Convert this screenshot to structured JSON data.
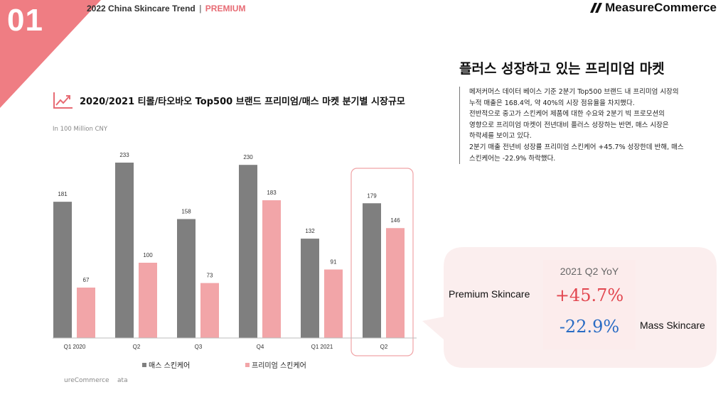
{
  "section_number": "01",
  "report_title": {
    "main": "2022 China Skincare Trend",
    "separator": "|",
    "tag": "PREMIUM"
  },
  "brand": "MeasureCommerce",
  "headline": "플러스 성장하고 있는 프리미엄 마켓",
  "description": [
    "메저커머스 데이터 베이스 기준 2분기 Top500 브랜드 내 프리미엄 시장의",
    "누적 매출은 168.4억, 약 40%의 시장 점유율을 차지했다.",
    "전반적으로 중고가 스킨케어 제품에 대한 수요와 2분기 빅 프로모션의",
    "영향으로 프리미엄 마켓이 전년대비 플러스 성장하는 반면, 매스 시장은",
    "하락세를 보이고 있다.",
    "2분기 매출 전년비 성장률 프리미엄 스킨케어 +45.7% 성장한데 반해, 매스",
    "스킨케어는 -22.9% 하락했다."
  ],
  "chart_icon": "trend-up-icon",
  "footer": "ureCommerce    ata",
  "yoy": {
    "title": "2021 Q2 YoY",
    "premium_label": "Premium Skincare",
    "premium_value": "+45.7%",
    "mass_label": "Mass Skincare",
    "mass_value": "-22.9%"
  },
  "colors": {
    "mass": "#7f7f7f",
    "premium": "#f2a5a8",
    "accent": "#e76b74",
    "corner": "#ef7d83",
    "highlight_border": "#f0a3a6",
    "yoy_positive": "#e2464f",
    "yoy_negative": "#2a6cc4"
  },
  "chart_data": {
    "type": "bar",
    "title": "2020/2021 티몰/타오바오 Top500 브랜드 프리미엄/매스 마켓 분기별  시장규모",
    "ylabel": "In 100 Million CNY",
    "categories": [
      "Q1 2020",
      "Q2",
      "Q3",
      "Q4",
      "Q1 2021",
      "Q2"
    ],
    "series": [
      {
        "name": "매스 스킨케어",
        "values": [
          181,
          233,
          158,
          230,
          132,
          179
        ]
      },
      {
        "name": "프리미엄 스킨케어",
        "values": [
          67,
          100,
          73,
          183,
          91,
          146
        ]
      }
    ],
    "ylim": [
      0,
      250
    ],
    "grid": false,
    "legend": "bottom",
    "data_labels": true,
    "highlight_category_index": 5
  }
}
